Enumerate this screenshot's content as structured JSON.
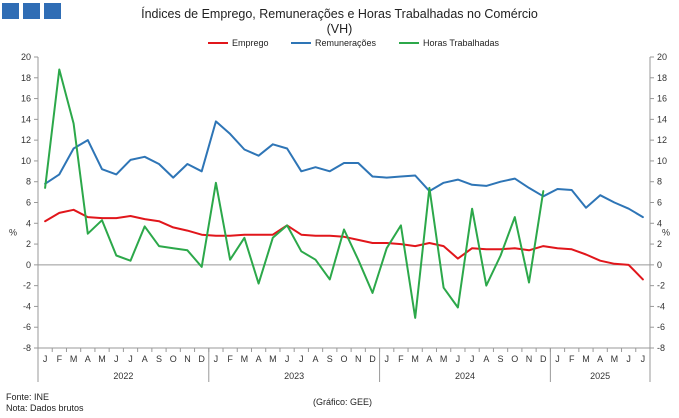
{
  "header": {
    "title": "Índices de Emprego, Remunerações e Horas Trabalhadas no Comércio",
    "subtitle": "(VH)"
  },
  "legend": [
    {
      "label": "Emprego",
      "color": "#e1161b"
    },
    {
      "label": "Remunerações",
      "color": "#2e75b6"
    },
    {
      "label": "Horas Trabalhadas",
      "color": "#2ca84a"
    }
  ],
  "footer": {
    "source": "Fonte: INE",
    "note": "Nota: Dados brutos",
    "credit": "(Gráfico: GEE)"
  },
  "chart_data": {
    "type": "line",
    "ylabel": "%",
    "ylim": [
      -8,
      20
    ],
    "yticks": [
      -8,
      -6,
      -4,
      -2,
      0,
      2,
      4,
      6,
      8,
      10,
      12,
      14,
      16,
      18,
      20
    ],
    "grid": false,
    "legend_position": "top",
    "x_month_labels": [
      "J",
      "F",
      "M",
      "A",
      "M",
      "J",
      "J",
      "A",
      "S",
      "O",
      "N",
      "D",
      "J",
      "F",
      "M",
      "A",
      "M",
      "J",
      "J",
      "A",
      "S",
      "O",
      "N",
      "D",
      "J",
      "F",
      "M",
      "A",
      "M",
      "J",
      "J",
      "A",
      "S",
      "O",
      "N",
      "D",
      "J",
      "F",
      "M",
      "A",
      "M",
      "J",
      "J"
    ],
    "x_year_groups": [
      {
        "label": "2022",
        "months": 12
      },
      {
        "label": "2023",
        "months": 12
      },
      {
        "label": "2024",
        "months": 12
      },
      {
        "label": "2025",
        "months": 7
      }
    ],
    "series": [
      {
        "name": "Emprego",
        "color": "#e1161b",
        "values": [
          4.2,
          5.0,
          5.3,
          4.6,
          4.5,
          4.5,
          4.7,
          4.4,
          4.2,
          3.6,
          3.3,
          2.9,
          2.8,
          2.8,
          2.9,
          2.9,
          2.9,
          3.8,
          2.9,
          2.8,
          2.8,
          2.7,
          2.4,
          2.1,
          2.1,
          2.0,
          1.8,
          2.1,
          1.8,
          0.6,
          1.6,
          1.5,
          1.5,
          1.6,
          1.4,
          1.8,
          1.6,
          1.5,
          1.0,
          0.4,
          0.1,
          0.0,
          -1.4
        ]
      },
      {
        "name": "Remunerações",
        "color": "#2e75b6",
        "values": [
          7.8,
          8.7,
          11.2,
          12.0,
          9.2,
          8.7,
          10.1,
          10.4,
          9.7,
          8.4,
          9.7,
          9.0,
          13.8,
          12.6,
          11.1,
          10.5,
          11.6,
          11.2,
          9.0,
          9.4,
          9.0,
          9.8,
          9.8,
          8.5,
          8.4,
          8.5,
          8.6,
          7.1,
          7.9,
          8.2,
          7.7,
          7.6,
          8.0,
          8.3,
          7.4,
          6.6,
          7.3,
          7.2,
          5.5,
          6.7,
          6.0,
          5.4,
          4.6
        ]
      },
      {
        "name": "Horas Trabalhadas",
        "color": "#2ca84a",
        "values": [
          7.4,
          18.8,
          13.6,
          3.0,
          4.3,
          0.9,
          0.4,
          3.7,
          1.8,
          1.6,
          1.4,
          -0.2,
          7.9,
          0.5,
          2.6,
          -1.8,
          2.6,
          3.8,
          1.3,
          0.5,
          -1.4,
          3.4,
          0.5,
          -2.7,
          1.6,
          3.8,
          -5.1,
          7.4,
          -2.2,
          -4.1,
          5.4,
          -2.0,
          0.9,
          4.6,
          -1.7,
          7.1,
          null,
          null,
          null,
          null,
          null,
          null,
          null
        ]
      }
    ]
  }
}
